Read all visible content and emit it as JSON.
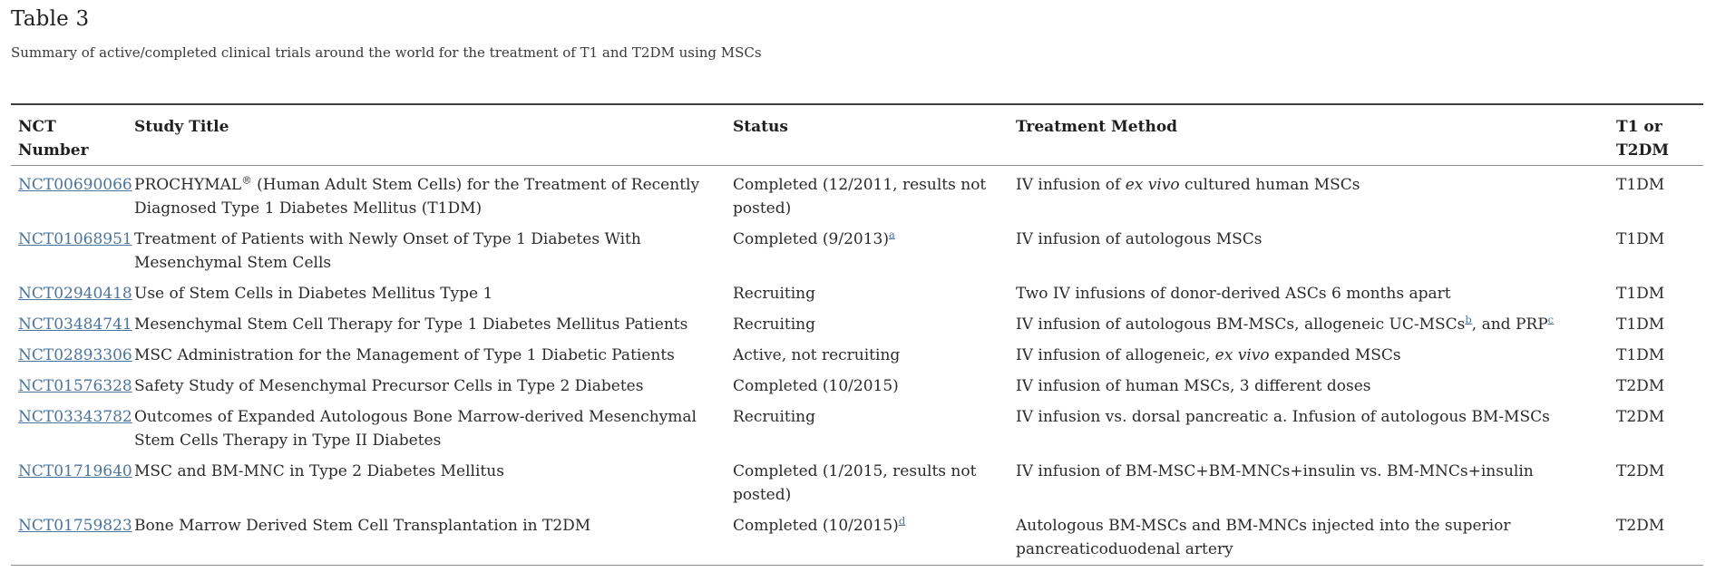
{
  "page": {
    "title": "Table 3",
    "subtitle": "Summary of active/completed clinical trials around the world for the treatment of T1 and T2DM using MSCs"
  },
  "colors": {
    "link": "#4c749c",
    "text": "#2b2b2b",
    "border_dark": "#3d3d3d",
    "border_light": "#8c8c8c"
  },
  "table": {
    "headers": [
      "NCT Number",
      "Study Title",
      "Status",
      "Treatment Method",
      "T1 or T2DM"
    ],
    "rows": [
      {
        "nct": "NCT00690066",
        "title": [
          {
            "text": "PROCHYMAL"
          },
          {
            "text": "®",
            "style": "sup"
          },
          {
            "text": " (Human Adult Stem Cells) for the Treatment of Recently Diagnosed Type 1 Diabetes Mellitus (T1DM)"
          }
        ],
        "status": [
          {
            "text": "Completed (12/2011, results not posted)"
          }
        ],
        "treatment": [
          {
            "text": "IV infusion of "
          },
          {
            "text": "ex vivo",
            "style": "italic"
          },
          {
            "text": " cultured human MSCs"
          }
        ],
        "type": "T1DM"
      },
      {
        "nct": "NCT01068951",
        "title": [
          {
            "text": "Treatment of Patients with Newly Onset of Type 1 Diabetes With Mesenchymal Stem Cells"
          }
        ],
        "status": [
          {
            "text": "Completed (9/2013)"
          },
          {
            "text": "a",
            "style": "fnlink"
          }
        ],
        "treatment": [
          {
            "text": "IV infusion of autologous MSCs"
          }
        ],
        "type": "T1DM"
      },
      {
        "nct": "NCT02940418",
        "title": [
          {
            "text": "Use of Stem Cells in Diabetes Mellitus Type 1"
          }
        ],
        "status": [
          {
            "text": "Recruiting"
          }
        ],
        "treatment": [
          {
            "text": "Two IV infusions of donor-derived ASCs 6 months apart"
          }
        ],
        "type": "T1DM"
      },
      {
        "nct": "NCT03484741",
        "title": [
          {
            "text": "Mesenchymal Stem Cell Therapy for Type 1 Diabetes Mellitus Patients"
          }
        ],
        "status": [
          {
            "text": "Recruiting"
          }
        ],
        "treatment": [
          {
            "text": "IV infusion of autologous BM-MSCs, allogeneic UC-MSCs"
          },
          {
            "text": "b",
            "style": "fnlink"
          },
          {
            "text": ", and PRP"
          },
          {
            "text": "c",
            "style": "fnlink"
          }
        ],
        "type": "T1DM"
      },
      {
        "nct": "NCT02893306",
        "title": [
          {
            "text": "MSC Administration for the Management of Type 1 Diabetic Patients"
          }
        ],
        "status": [
          {
            "text": "Active, not recruiting"
          }
        ],
        "treatment": [
          {
            "text": "IV infusion of allogeneic, "
          },
          {
            "text": "ex vivo",
            "style": "italic"
          },
          {
            "text": " expanded MSCs"
          }
        ],
        "type": "T1DM"
      },
      {
        "nct": "NCT01576328",
        "title": [
          {
            "text": "Safety Study of Mesenchymal Precursor Cells in Type 2 Diabetes"
          }
        ],
        "status": [
          {
            "text": "Completed (10/2015)"
          }
        ],
        "treatment": [
          {
            "text": "IV infusion of human MSCs, 3 different doses"
          }
        ],
        "type": "T2DM"
      },
      {
        "nct": "NCT03343782",
        "title": [
          {
            "text": "Outcomes of Expanded Autologous Bone Marrow-derived Mesenchymal Stem Cells Therapy in Type II Diabetes"
          }
        ],
        "status": [
          {
            "text": "Recruiting"
          }
        ],
        "treatment": [
          {
            "text": "IV infusion vs. dorsal pancreatic a. Infusion of autologous BM-MSCs"
          }
        ],
        "type": "T2DM"
      },
      {
        "nct": "NCT01719640",
        "title": [
          {
            "text": "MSC and BM-MNC in Type 2 Diabetes Mellitus"
          }
        ],
        "status": [
          {
            "text": "Completed (1/2015, results not posted)"
          }
        ],
        "treatment": [
          {
            "text": "IV infusion of BM-MSC+BM-MNCs+insulin vs. BM-MNCs+insulin"
          }
        ],
        "type": "T2DM"
      },
      {
        "nct": "NCT01759823",
        "title": [
          {
            "text": "Bone Marrow Derived Stem Cell Transplantation in T2DM"
          }
        ],
        "status": [
          {
            "text": "Completed (10/2015)"
          },
          {
            "text": "d",
            "style": "fnlink"
          }
        ],
        "treatment": [
          {
            "text": "Autologous BM-MSCs and BM-MNCs injected into the superior pancreaticoduodenal artery"
          }
        ],
        "type": "T2DM"
      }
    ]
  }
}
